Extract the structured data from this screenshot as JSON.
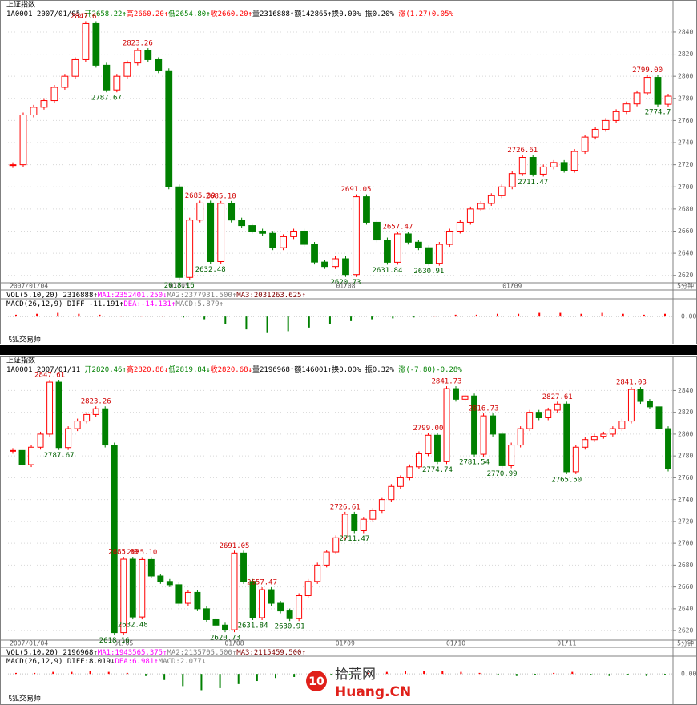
{
  "chart_data": [
    {
      "type": "candlestick",
      "title": "上证指数",
      "info": [
        {
          "text": "1A0001 2007/01/05 ",
          "color": "#000000"
        },
        {
          "text": "开2658.22↑",
          "color": "#008000"
        },
        {
          "text": "高2660.20↑",
          "color": "#ff0000"
        },
        {
          "text": "低2654.80↑",
          "color": "#008000"
        },
        {
          "text": "收2660.20↑",
          "color": "#ff0000"
        },
        {
          "text": "量2316888↑",
          "color": "#000000"
        },
        {
          "text": "额142865↑",
          "color": "#000000"
        },
        {
          "text": "换0.00% ",
          "color": "#000000"
        },
        {
          "text": "振0.20% ",
          "color": "#000000"
        },
        {
          "text": "涨(1.27)0.05%",
          "color": "#ff0000"
        }
      ],
      "x": [
        "2007/01/04",
        null,
        null,
        null,
        null,
        null,
        null,
        null,
        null,
        null,
        null,
        null,
        null,
        null,
        null,
        null,
        "01/05",
        null,
        null,
        null,
        null,
        null,
        null,
        null,
        null,
        null,
        null,
        null,
        null,
        null,
        null,
        null,
        "01/08",
        null,
        null,
        null,
        null,
        null,
        null,
        null,
        null,
        null,
        null,
        null,
        null,
        null,
        null,
        null,
        "01/09",
        null,
        null,
        null,
        null,
        null,
        null,
        null,
        null,
        null,
        null,
        null,
        null,
        null,
        null,
        null
      ],
      "close": [
        2720,
        2765,
        2772,
        2778,
        2790,
        2800,
        2815,
        2847.61,
        2810,
        2787.67,
        2800,
        2812,
        2823.26,
        2815,
        2805,
        2700,
        2618.16,
        2670,
        2685.39,
        2632.48,
        2685.1,
        2670,
        2665,
        2660,
        2658,
        2645,
        2655,
        2660,
        2648,
        2632,
        2628,
        2635,
        2620.73,
        2691.05,
        2668,
        2652,
        2631.84,
        2657.47,
        2650,
        2645,
        2630.91,
        2648,
        2660,
        2668,
        2680,
        2685,
        2692,
        2700,
        2712,
        2726.61,
        2711.47,
        2718,
        2722,
        2715,
        2732,
        2745,
        2752,
        2760,
        2768,
        2775,
        2785,
        2799,
        2774.7,
        2782
      ],
      "annotations": [
        2847.61,
        2787.67,
        2823.26,
        2618.16,
        2685.39,
        2632.48,
        {
          "value": 2685.1,
          "label": "2685.10"
        },
        2620.73,
        2691.05,
        2631.84,
        2657.47,
        2630.91,
        2726.61,
        2711.47,
        {
          "value": 2799,
          "label": "2799.00"
        },
        2774.7
      ],
      "ylim": [
        2614,
        2853
      ],
      "yticks": [
        2620,
        2640,
        2660,
        2680,
        2700,
        2720,
        2740,
        2760,
        2780,
        2800,
        2820,
        2840
      ],
      "grid": true,
      "up_color": "#ff0000",
      "down_color": "#008000",
      "axis_unit": "5分钟",
      "vol_info": [
        {
          "text": "VOL(5,10,20) 2316888↑",
          "color": "#000000"
        },
        {
          "text": "MA1:2352401.250↓",
          "color": "#ff00ff"
        },
        {
          "text": "MA2:2377931.500↑",
          "color": "#808080"
        },
        {
          "text": "MA3:2031263.625↑",
          "color": "#800000"
        }
      ],
      "macd_info": [
        {
          "text": "MACD(26,12,9) DIFF -11.191↑",
          "color": "#000000"
        },
        {
          "text": "DEA:-14.131↑",
          "color": "#ff00ff"
        },
        {
          "text": "MACD:5.879↑",
          "color": "#808080"
        }
      ],
      "macd": [
        2,
        3,
        4,
        3,
        2,
        1,
        1,
        0.5,
        -1,
        -3,
        -8,
        -14,
        -18,
        -16,
        -12,
        -8,
        -5,
        -3,
        -2,
        -1,
        1,
        2,
        2,
        3,
        3,
        4,
        4,
        3,
        4,
        3,
        2,
        3
      ],
      "macd_ylim": [
        -20,
        8
      ],
      "macd_yticks": [
        {
          "value": 0,
          "label": "0.00"
        }
      ],
      "footer": "飞狐交易师"
    },
    {
      "type": "candlestick",
      "title": "上证指数",
      "info": [
        {
          "text": "1A0001 2007/01/11 ",
          "color": "#000000"
        },
        {
          "text": "开2820.46↑",
          "color": "#008000"
        },
        {
          "text": "高2820.88↓",
          "color": "#ff0000"
        },
        {
          "text": "低2819.84↓",
          "color": "#008000"
        },
        {
          "text": "收2820.68↓",
          "color": "#ff0000"
        },
        {
          "text": "量2196968↑",
          "color": "#000000"
        },
        {
          "text": "额146001↑",
          "color": "#000000"
        },
        {
          "text": "换0.00% ",
          "color": "#000000"
        },
        {
          "text": "振0.32% ",
          "color": "#000000"
        },
        {
          "text": "涨(-7.80)-0.28%",
          "color": "#008000"
        }
      ],
      "x": [
        "2007/01/04",
        null,
        null,
        null,
        null,
        null,
        null,
        null,
        null,
        null,
        null,
        null,
        "01/05",
        null,
        null,
        null,
        null,
        null,
        null,
        null,
        null,
        null,
        null,
        null,
        "01/08",
        null,
        null,
        null,
        null,
        null,
        null,
        null,
        null,
        null,
        null,
        null,
        "01/09",
        null,
        null,
        null,
        null,
        null,
        null,
        null,
        null,
        null,
        null,
        null,
        "01/10",
        null,
        null,
        null,
        null,
        null,
        null,
        null,
        null,
        null,
        null,
        null,
        "01/11",
        null,
        null,
        null,
        null,
        null,
        null,
        null,
        null,
        null,
        null,
        null
      ],
      "close": [
        2785,
        2772,
        2788,
        2800,
        2847.61,
        2787.67,
        2805,
        2812,
        2818,
        2823.26,
        2790,
        2618.16,
        2685.39,
        2632.48,
        2685.1,
        2670,
        2665,
        2662,
        2645,
        2655,
        2640,
        2630,
        2625,
        2620.73,
        2691.05,
        2665,
        2631.84,
        2657.47,
        2645,
        2638,
        2630.91,
        2652,
        2665,
        2680,
        2692,
        2705,
        2726.61,
        2711.47,
        2722,
        2730,
        2740,
        2752,
        2760,
        2770,
        2782,
        2799,
        2774.74,
        2841.73,
        2832,
        2835,
        2781.54,
        2816.73,
        2800,
        2770.99,
        2790,
        2805,
        2820,
        2815,
        2822,
        2827.61,
        2765.5,
        2788,
        2795,
        2798,
        2800,
        2805,
        2812,
        2841.03,
        2830,
        2825,
        2805,
        2768
      ],
      "annotations": [
        2847.61,
        2787.67,
        2823.26,
        2618.16,
        2685.39,
        2632.48,
        {
          "value": 2685.1,
          "label": "2685.10"
        },
        2620.73,
        2691.05,
        2631.84,
        2657.47,
        2630.91,
        2726.61,
        2711.47,
        {
          "value": 2799,
          "label": "2799.00"
        },
        2774.74,
        2841.73,
        2781.54,
        2816.73,
        2770.99,
        2827.61,
        {
          "value": 2765.5,
          "label": "2765.50"
        },
        2841.03
      ],
      "ylim": [
        2612,
        2855
      ],
      "yticks": [
        2620,
        2640,
        2660,
        2680,
        2700,
        2720,
        2740,
        2760,
        2780,
        2800,
        2820,
        2840
      ],
      "grid": true,
      "up_color": "#ff0000",
      "down_color": "#008000",
      "axis_unit": "5分钟",
      "vol_info": [
        {
          "text": "VOL(5,10,20) 2196968↑",
          "color": "#000000"
        },
        {
          "text": "MA1:1943565.375↑",
          "color": "#ff00ff"
        },
        {
          "text": "MA2:2135705.500↑",
          "color": "#808080"
        },
        {
          "text": "MA3:2115459.500↑",
          "color": "#800000"
        }
      ],
      "macd_info": [
        {
          "text": "MACD(26,12,9) DIFF:8.019↓",
          "color": "#000000"
        },
        {
          "text": "DEA:6.981↑",
          "color": "#ff00ff"
        },
        {
          "text": "MACD:2.077↓",
          "color": "#808080"
        }
      ],
      "macd": [
        1,
        1,
        2,
        2,
        3,
        2,
        1,
        -2,
        -6,
        -12,
        -16,
        -14,
        -10,
        -7,
        -4,
        -3,
        -2,
        -1,
        -1,
        1,
        2,
        3,
        3,
        3,
        2,
        1,
        -1,
        -2,
        -1,
        1,
        2,
        -1,
        -2,
        -1,
        -2,
        -1
      ],
      "macd_ylim": [
        -18,
        8
      ],
      "macd_yticks": [
        {
          "value": 0,
          "label": "0.00"
        }
      ],
      "footer": "飞狐交易师"
    }
  ],
  "watermark": {
    "logo": "10",
    "site": "拾荒网",
    "url": "Huang.CN"
  }
}
